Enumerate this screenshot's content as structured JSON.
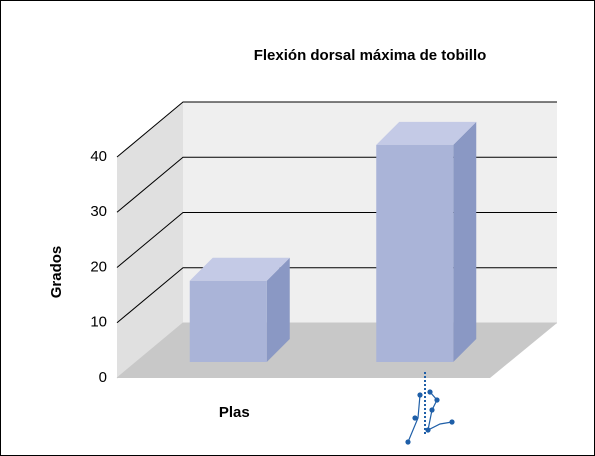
{
  "chart_data": {
    "type": "bar3d",
    "title": "Flexión dorsal máxima de tobillo",
    "y_label": "Grados",
    "categories": [
      "Plas",
      null
    ],
    "values": [
      14.7,
      39.3
    ],
    "color": "#aab4d8",
    "ylim": [
      0,
      40
    ],
    "yticks": [
      0,
      10,
      20,
      30,
      40
    ],
    "grid": true
  }
}
